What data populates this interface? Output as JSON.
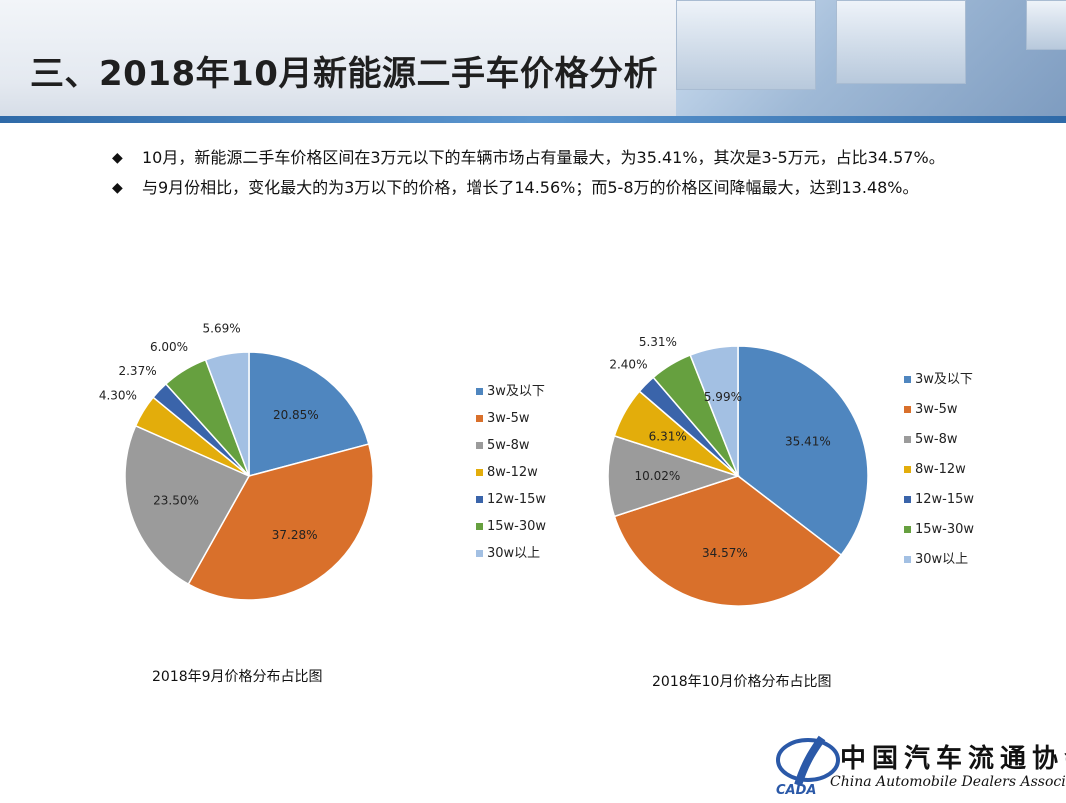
{
  "title": "三、2018年10月新能源二手车价格分析",
  "bullets": [
    {
      "mark": "◆",
      "text": "10月，新能源二手车价格区间在3万元以下的车辆市场占有量最大，为35.41%，其次是3-5万元，占比34.57%。"
    },
    {
      "mark": "◆",
      "text": "与9月份相比，变化最大的为3万以下的价格，增长了14.56%；而5-8万的价格区间降幅最大，达到13.48%。"
    }
  ],
  "colors": [
    "#4f86bf",
    "#d9702b",
    "#9b9b9b",
    "#e3ad0b",
    "#3a64aa",
    "#66a03f",
    "#a3c0e3"
  ],
  "chart_data": [
    {
      "type": "pie",
      "title": "2018年9月价格分布占比图",
      "categories": [
        "3w及以下",
        "3w-5w",
        "5w-8w",
        "8w-12w",
        "12w-15w",
        "15w-30w",
        "30w以上"
      ],
      "values": [
        20.85,
        37.28,
        23.5,
        4.3,
        2.37,
        6.0,
        5.69
      ],
      "labels": [
        "20.85%",
        "37.28%",
        "23.50%",
        "4.30%",
        "2.37%",
        "6.00%",
        "5.69%"
      ],
      "legend": "right"
    },
    {
      "type": "pie",
      "title": "2018年10月价格分布占比图",
      "categories": [
        "3w及以下",
        "3w-5w",
        "5w-8w",
        "8w-12w",
        "12w-15w",
        "15w-30w",
        "30w以上"
      ],
      "values": [
        35.41,
        34.57,
        10.02,
        6.31,
        2.4,
        5.31,
        5.99
      ],
      "labels": [
        "35.41%",
        "34.57%",
        "10.02%",
        "6.31%",
        "2.40%",
        "5.31%",
        "5.99%"
      ],
      "legend": "right"
    }
  ],
  "logo": {
    "cn": "中国汽车流通协会",
    "en": "China Automobile Dealers Association",
    "mark": "CADA"
  }
}
